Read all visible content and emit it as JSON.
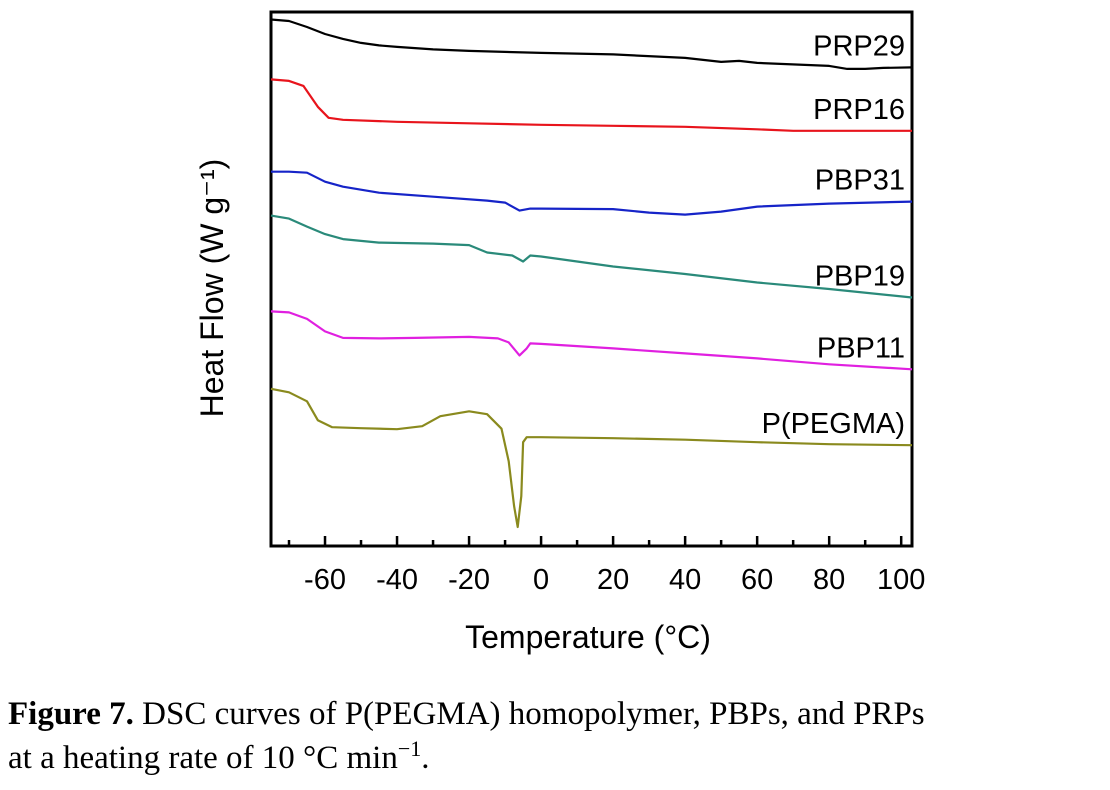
{
  "caption": {
    "label": "Figure 7.",
    "text_line1": "DSC curves of P(PEGMA) homopolymer, PBPs, and PRPs",
    "text_line2_before": "at a heating rate of 10 °C min",
    "text_line2_sup": "−1",
    "text_line2_after": "."
  },
  "chart_data": {
    "type": "line",
    "title": "",
    "xlabel": "Temperature (°C)",
    "ylabel": "Heat Flow (W g⁻¹)",
    "xlim": [
      -75,
      103
    ],
    "x_ticks": [
      -60,
      -40,
      -20,
      0,
      20,
      40,
      60,
      80,
      100
    ],
    "x_tick_labels": [
      "-60",
      "-40",
      "-20",
      "0",
      "20",
      "40",
      "60",
      "80",
      "100"
    ],
    "y_ticks_shown": false,
    "grid": false,
    "legend": "inline labels at right end of each curve",
    "series": [
      {
        "name": "PRP29",
        "color": "#000000",
        "points": [
          [
            -75,
            1.35
          ],
          [
            -70,
            1.32
          ],
          [
            -65,
            1.2
          ],
          [
            -60,
            1.06
          ],
          [
            -55,
            0.96
          ],
          [
            -50,
            0.88
          ],
          [
            -45,
            0.83
          ],
          [
            -40,
            0.8
          ],
          [
            -30,
            0.75
          ],
          [
            -20,
            0.72
          ],
          [
            0,
            0.68
          ],
          [
            20,
            0.65
          ],
          [
            40,
            0.58
          ],
          [
            50,
            0.5
          ],
          [
            55,
            0.52
          ],
          [
            60,
            0.48
          ],
          [
            80,
            0.42
          ],
          [
            85,
            0.36
          ],
          [
            90,
            0.36
          ],
          [
            95,
            0.38
          ],
          [
            103,
            0.39
          ]
        ]
      },
      {
        "name": "PRP16",
        "color": "#e8141c",
        "points": [
          [
            -75,
            0.15
          ],
          [
            -70,
            0.12
          ],
          [
            -66,
            0.02
          ],
          [
            -62,
            -0.4
          ],
          [
            -59,
            -0.62
          ],
          [
            -55,
            -0.66
          ],
          [
            -40,
            -0.7
          ],
          [
            -20,
            -0.73
          ],
          [
            0,
            -0.76
          ],
          [
            20,
            -0.78
          ],
          [
            40,
            -0.8
          ],
          [
            60,
            -0.85
          ],
          [
            70,
            -0.88
          ],
          [
            80,
            -0.88
          ],
          [
            103,
            -0.88
          ]
        ]
      },
      {
        "name": "PBP31",
        "color": "#1624c8",
        "points": [
          [
            -75,
            -1.7
          ],
          [
            -70,
            -1.7
          ],
          [
            -65,
            -1.72
          ],
          [
            -60,
            -1.9
          ],
          [
            -55,
            -2.0
          ],
          [
            -45,
            -2.12
          ],
          [
            -30,
            -2.2
          ],
          [
            -15,
            -2.28
          ],
          [
            -10,
            -2.32
          ],
          [
            -6,
            -2.48
          ],
          [
            -3,
            -2.44
          ],
          [
            0,
            -2.44
          ],
          [
            20,
            -2.45
          ],
          [
            30,
            -2.52
          ],
          [
            40,
            -2.56
          ],
          [
            50,
            -2.5
          ],
          [
            60,
            -2.4
          ],
          [
            80,
            -2.34
          ],
          [
            103,
            -2.3
          ]
        ]
      },
      {
        "name": "PBP19",
        "color": "#2a8a7a",
        "points": [
          [
            -75,
            -2.58
          ],
          [
            -70,
            -2.64
          ],
          [
            -65,
            -2.8
          ],
          [
            -60,
            -2.95
          ],
          [
            -55,
            -3.05
          ],
          [
            -45,
            -3.12
          ],
          [
            -30,
            -3.14
          ],
          [
            -20,
            -3.17
          ],
          [
            -15,
            -3.32
          ],
          [
            -8,
            -3.38
          ],
          [
            -5,
            -3.5
          ],
          [
            -3,
            -3.38
          ],
          [
            0,
            -3.4
          ],
          [
            20,
            -3.6
          ],
          [
            40,
            -3.75
          ],
          [
            60,
            -3.92
          ],
          [
            80,
            -4.05
          ],
          [
            103,
            -4.22
          ]
        ]
      },
      {
        "name": "PBP11",
        "color": "#e020e0",
        "points": [
          [
            -75,
            -4.5
          ],
          [
            -70,
            -4.52
          ],
          [
            -65,
            -4.65
          ],
          [
            -60,
            -4.9
          ],
          [
            -55,
            -5.03
          ],
          [
            -45,
            -5.04
          ],
          [
            -35,
            -5.03
          ],
          [
            -20,
            -5.01
          ],
          [
            -12,
            -5.04
          ],
          [
            -9,
            -5.12
          ],
          [
            -6,
            -5.38
          ],
          [
            -4,
            -5.24
          ],
          [
            -3,
            -5.14
          ],
          [
            0,
            -5.15
          ],
          [
            20,
            -5.24
          ],
          [
            40,
            -5.34
          ],
          [
            60,
            -5.44
          ],
          [
            80,
            -5.56
          ],
          [
            103,
            -5.66
          ]
        ]
      },
      {
        "name": "P(PEGMA)",
        "color": "#8a8a1e",
        "points": [
          [
            -75,
            -6.05
          ],
          [
            -70,
            -6.12
          ],
          [
            -65,
            -6.3
          ],
          [
            -62,
            -6.68
          ],
          [
            -58,
            -6.82
          ],
          [
            -50,
            -6.84
          ],
          [
            -40,
            -6.86
          ],
          [
            -33,
            -6.8
          ],
          [
            -28,
            -6.6
          ],
          [
            -20,
            -6.5
          ],
          [
            -15,
            -6.56
          ],
          [
            -11,
            -6.85
          ],
          [
            -9,
            -7.5
          ],
          [
            -7.5,
            -8.4
          ],
          [
            -6.5,
            -8.82
          ],
          [
            -5.5,
            -8.2
          ],
          [
            -5,
            -7.12
          ],
          [
            -4,
            -7.02
          ],
          [
            0,
            -7.02
          ],
          [
            20,
            -7.04
          ],
          [
            40,
            -7.07
          ],
          [
            60,
            -7.12
          ],
          [
            80,
            -7.16
          ],
          [
            103,
            -7.18
          ]
        ]
      }
    ]
  }
}
